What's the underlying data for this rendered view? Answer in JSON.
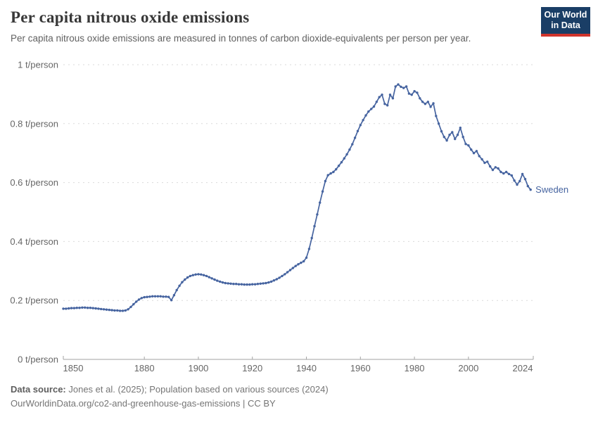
{
  "header": {
    "title": "Per capita nitrous oxide emissions",
    "subtitle": "Per capita nitrous oxide emissions are measured in tonnes of carbon dioxide-equivalents per person per year."
  },
  "logo": {
    "line1": "Our World",
    "line2": "in Data",
    "background": "#1a3e66",
    "accent": "#d0342c"
  },
  "chart_data": {
    "type": "line",
    "title": "Per capita nitrous oxide emissions",
    "unit": "t/person",
    "xlabel": "",
    "ylabel": "t/person",
    "xlim": [
      1850,
      2024
    ],
    "ylim": [
      0,
      1
    ],
    "grid": "horizontal-dashed",
    "legend": "end-of-line-label",
    "colors": {
      "line": "#4664a0",
      "grid": "#dadada",
      "axis": "#a3a3a3",
      "tick_label": "#666666"
    },
    "y_ticks": [
      {
        "value": 0,
        "label": "0 t/person"
      },
      {
        "value": 0.2,
        "label": "0.2 t/person"
      },
      {
        "value": 0.4,
        "label": "0.4 t/person"
      },
      {
        "value": 0.6,
        "label": "0.6 t/person"
      },
      {
        "value": 0.8,
        "label": "0.8 t/person"
      },
      {
        "value": 1,
        "label": "1 t/person"
      }
    ],
    "x_ticks": [
      {
        "value": 1850,
        "label": "1850"
      },
      {
        "value": 1880,
        "label": "1880"
      },
      {
        "value": 1900,
        "label": "1900"
      },
      {
        "value": 1920,
        "label": "1920"
      },
      {
        "value": 1940,
        "label": "1940"
      },
      {
        "value": 1960,
        "label": "1960"
      },
      {
        "value": 1980,
        "label": "1980"
      },
      {
        "value": 2000,
        "label": "2000"
      },
      {
        "value": 2024,
        "label": "2024"
      }
    ],
    "series": [
      {
        "name": "Sweden",
        "color": "#4664a0",
        "cadence": "annual",
        "start_year": 1850,
        "end_year": 2023,
        "values": [
          0.172,
          0.172,
          0.173,
          0.174,
          0.174,
          0.175,
          0.175,
          0.176,
          0.176,
          0.175,
          0.175,
          0.174,
          0.173,
          0.172,
          0.171,
          0.17,
          0.169,
          0.168,
          0.167,
          0.166,
          0.166,
          0.165,
          0.165,
          0.166,
          0.17,
          0.178,
          0.187,
          0.196,
          0.203,
          0.208,
          0.211,
          0.212,
          0.213,
          0.214,
          0.214,
          0.214,
          0.214,
          0.213,
          0.213,
          0.212,
          0.201,
          0.218,
          0.235,
          0.25,
          0.262,
          0.271,
          0.278,
          0.283,
          0.286,
          0.288,
          0.289,
          0.288,
          0.286,
          0.283,
          0.279,
          0.275,
          0.271,
          0.267,
          0.264,
          0.261,
          0.259,
          0.258,
          0.257,
          0.256,
          0.256,
          0.255,
          0.255,
          0.254,
          0.254,
          0.254,
          0.255,
          0.255,
          0.256,
          0.257,
          0.258,
          0.259,
          0.261,
          0.264,
          0.268,
          0.272,
          0.277,
          0.283,
          0.289,
          0.296,
          0.303,
          0.31,
          0.317,
          0.323,
          0.328,
          0.333,
          0.345,
          0.375,
          0.412,
          0.452,
          0.492,
          0.532,
          0.57,
          0.605,
          0.625,
          0.631,
          0.636,
          0.645,
          0.657,
          0.669,
          0.682,
          0.696,
          0.712,
          0.73,
          0.752,
          0.775,
          0.795,
          0.812,
          0.828,
          0.841,
          0.85,
          0.858,
          0.874,
          0.89,
          0.898,
          0.867,
          0.862,
          0.898,
          0.886,
          0.926,
          0.933,
          0.925,
          0.921,
          0.926,
          0.902,
          0.898,
          0.91,
          0.905,
          0.886,
          0.874,
          0.867,
          0.874,
          0.857,
          0.869,
          0.826,
          0.8,
          0.774,
          0.755,
          0.743,
          0.762,
          0.771,
          0.748,
          0.762,
          0.786,
          0.755,
          0.731,
          0.726,
          0.712,
          0.7,
          0.707,
          0.69,
          0.679,
          0.667,
          0.671,
          0.655,
          0.643,
          0.652,
          0.648,
          0.636,
          0.631,
          0.636,
          0.629,
          0.624,
          0.607,
          0.593,
          0.605,
          0.629,
          0.612,
          0.588,
          0.576
        ]
      }
    ]
  },
  "footer": {
    "source_label": "Data source:",
    "source_text": " Jones et al. (2025); Population based on various sources (2024)",
    "link_line": "OurWorldinData.org/co2-and-greenhouse-gas-emissions | CC BY"
  }
}
